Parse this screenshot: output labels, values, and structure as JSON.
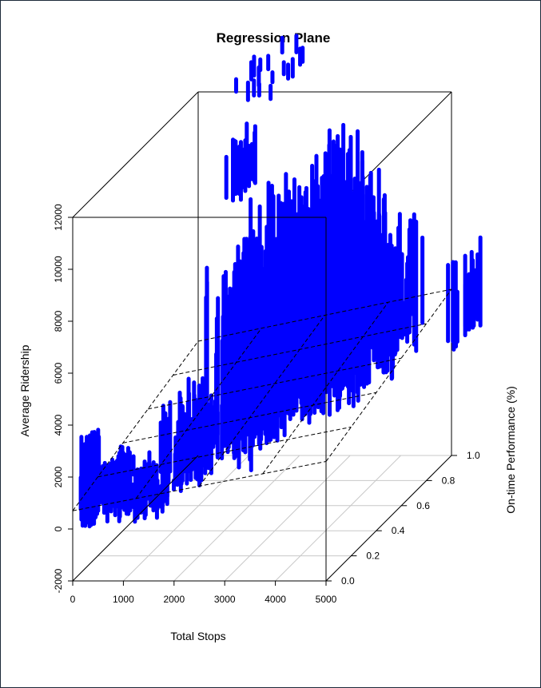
{
  "chart_data": {
    "type": "scatter",
    "title": "Regression Plane",
    "xlabel": "Total Stops",
    "ylabel": "On-time Performance (%)",
    "zlabel": "Average Ridership",
    "x_ticks": [
      "0",
      "1000",
      "2000",
      "3000",
      "4000",
      "5000"
    ],
    "y_ticks": [
      "0.0",
      "0.2",
      "0.4",
      "0.6",
      "0.8",
      "1.0"
    ],
    "z_ticks": [
      "-2000",
      "0",
      "2000",
      "4000",
      "6000",
      "8000",
      "10000",
      "12000"
    ],
    "xlim": [
      0,
      5000
    ],
    "ylim": [
      0,
      1
    ],
    "zlim": [
      -2000,
      12000
    ],
    "point_color": "#0000ff",
    "box": true,
    "grid_on_floor": true,
    "regression_plane": {
      "style": "dashed",
      "z_at_corners": {
        "x0_y0": 700,
        "x5000_y0": 2600,
        "x0_y1": 2400,
        "x5000_y1": 4400
      }
    },
    "clusters": [
      {
        "x": [
          0,
          300
        ],
        "y": [
          0.15,
          0.4
        ],
        "z": [
          -200,
          1400
        ]
      },
      {
        "x": [
          0,
          200
        ],
        "y": [
          0.05,
          0.15
        ],
        "z": [
          -300,
          3300
        ]
      },
      {
        "x": [
          400,
          1400
        ],
        "y": [
          0.1,
          0.25
        ],
        "z": [
          -300,
          2000
        ]
      },
      {
        "x": [
          1200,
          1800
        ],
        "y": [
          0.2,
          0.5
        ],
        "z": [
          200,
          3800
        ]
      },
      {
        "x": [
          1500,
          2200
        ],
        "y": [
          0.4,
          0.75
        ],
        "z": [
          500,
          8700
        ]
      },
      {
        "x": [
          1900,
          2800
        ],
        "y": [
          0.55,
          0.85
        ],
        "z": [
          800,
          10200
        ]
      },
      {
        "x": [
          2600,
          3400
        ],
        "y": [
          0.6,
          0.9
        ],
        "z": [
          1200,
          10400
        ]
      },
      {
        "x": [
          3200,
          4000
        ],
        "y": [
          0.65,
          0.95
        ],
        "z": [
          1500,
          9500
        ]
      },
      {
        "x": [
          3600,
          4500
        ],
        "y": [
          0.7,
          1.0
        ],
        "z": [
          2000,
          7800
        ]
      },
      {
        "x": [
          2800,
          3600
        ],
        "y": [
          0.75,
          0.95
        ],
        "z": [
          2600,
          11200
        ]
      },
      {
        "x": [
          2000,
          3000
        ],
        "y": [
          0.3,
          0.6
        ],
        "z": [
          600,
          6500
        ]
      },
      {
        "x": [
          3000,
          4200
        ],
        "y": [
          0.4,
          0.7
        ],
        "z": [
          1800,
          8000
        ]
      }
    ],
    "outliers": [
      {
        "x": [
          4950,
          5150
        ],
        "y": [
          0.95,
          1.2
        ],
        "z": [
          2000,
          5500
        ]
      },
      {
        "x": [
          600,
          1500
        ],
        "y": [
          0.95,
          1.35
        ],
        "z": [
          11700,
          12500
        ]
      },
      {
        "x": [
          2000,
          2300
        ],
        "y": [
          0.4,
          0.6
        ],
        "z": [
          10500,
          13000
        ]
      }
    ]
  }
}
